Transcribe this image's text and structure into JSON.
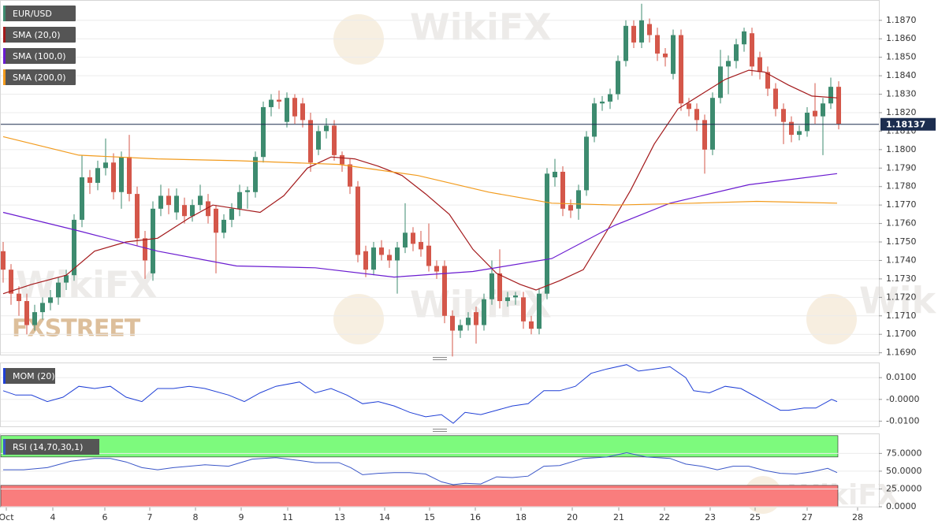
{
  "chart_data": {
    "type": "candlestick",
    "symbol": "EUR/USD",
    "logo": "FXSTREET",
    "watermark": "WikiFX",
    "grid": true,
    "up_color": "#3d8b6f",
    "down_color": "#d4574a",
    "xlim": [
      -0.4,
      111.1
    ],
    "xticks": [
      {
        "value": 0.4,
        "label": "Oct"
      },
      {
        "value": 6.3,
        "label": "4"
      },
      {
        "value": 12.9,
        "label": "6"
      },
      {
        "value": 18.6,
        "label": "7"
      },
      {
        "value": 24.4,
        "label": "8"
      },
      {
        "value": 30.2,
        "label": "9"
      },
      {
        "value": 36.1,
        "label": "11"
      },
      {
        "value": 42.7,
        "label": "13"
      },
      {
        "value": 48.4,
        "label": "14"
      },
      {
        "value": 54.1,
        "label": "15"
      },
      {
        "value": 59.9,
        "label": "16"
      },
      {
        "value": 65.7,
        "label": "18"
      },
      {
        "value": 72.2,
        "label": "20"
      },
      {
        "value": 78.1,
        "label": "21"
      },
      {
        "value": 83.9,
        "label": "22"
      },
      {
        "value": 89.7,
        "label": "23"
      },
      {
        "value": 95.4,
        "label": "25"
      },
      {
        "value": 102,
        "label": "27"
      },
      {
        "value": 108.4,
        "label": "28"
      }
    ],
    "ylim": [
      1.1689,
      1.1881
    ],
    "yticks": [
      {
        "value": 1.169,
        "label": "1.1690"
      },
      {
        "value": 1.17,
        "label": "1.1700"
      },
      {
        "value": 1.171,
        "label": "1.1710"
      },
      {
        "value": 1.172,
        "label": "1.1720"
      },
      {
        "value": 1.173,
        "label": "1.1730"
      },
      {
        "value": 1.174,
        "label": "1.1740"
      },
      {
        "value": 1.175,
        "label": "1.1750"
      },
      {
        "value": 1.176,
        "label": "1.1760"
      },
      {
        "value": 1.177,
        "label": "1.1770"
      },
      {
        "value": 1.178,
        "label": "1.1780"
      },
      {
        "value": 1.179,
        "label": "1.1790"
      },
      {
        "value": 1.18,
        "label": "1.1800"
      },
      {
        "value": 1.181,
        "label": "1.1810"
      },
      {
        "value": 1.182,
        "label": "1.1820"
      },
      {
        "value": 1.183,
        "label": "1.1830"
      },
      {
        "value": 1.184,
        "label": "1.1840"
      },
      {
        "value": 1.185,
        "label": "1.1850"
      },
      {
        "value": 1.186,
        "label": "1.1860"
      },
      {
        "value": 1.187,
        "label": "1.1870"
      }
    ],
    "open": [
      1.1745,
      1.1735,
      1.1722,
      1.1718,
      1.1705,
      1.1712,
      1.1717,
      1.172,
      1.1728,
      1.1732,
      1.1762,
      1.1785,
      1.1782,
      1.179,
      1.1793,
      1.1777,
      1.1796,
      1.1776,
      1.1752,
      1.1733,
      1.1768,
      1.1775,
      1.1766,
      1.177,
      1.1764,
      1.177,
      1.1772,
      1.1768,
      1.1755,
      1.1762,
      1.1768,
      1.1777,
      1.1777,
      1.1796,
      1.1823,
      1.1827,
      1.1815,
      1.1828,
      1.1825,
      1.1816,
      1.18,
      1.181,
      1.1813,
      1.1797,
      1.1792,
      1.178,
      1.1745,
      1.1735,
      1.1747,
      1.1743,
      1.174,
      1.1747,
      1.1755,
      1.175,
      1.1748,
      1.1737,
      1.1737,
      1.171,
      1.1702,
      1.1705,
      1.1712,
      1.1705,
      1.1719,
      1.1733,
      1.1718,
      1.172,
      1.172,
      1.1707,
      1.1703,
      1.1722,
      1.1785,
      1.1788,
      1.177,
      1.1768,
      1.1778,
      1.1807,
      1.1825,
      1.1826,
      1.183,
      1.1848,
      1.1867,
      1.1858,
      1.1868,
      1.1862,
      1.1852,
      1.1841,
      1.1862,
      1.1825,
      1.1822,
      1.1816,
      1.18,
      1.1828,
      1.1845,
      1.1848,
      1.1857,
      1.1863,
      1.185,
      1.1842,
      1.1833,
      1.1822,
      1.1815,
      1.1808,
      1.181,
      1.1821,
      1.1818,
      1.1825,
      1.1834
    ],
    "high": [
      1.175,
      1.1738,
      1.1726,
      1.1722,
      1.1716,
      1.172,
      1.1724,
      1.1731,
      1.1735,
      1.1765,
      1.1797,
      1.1789,
      1.1794,
      1.1806,
      1.1798,
      1.1799,
      1.1808,
      1.178,
      1.1756,
      1.1772,
      1.1781,
      1.1779,
      1.1779,
      1.1774,
      1.1773,
      1.1781,
      1.1776,
      1.177,
      1.1765,
      1.1771,
      1.1781,
      1.178,
      1.1799,
      1.1826,
      1.183,
      1.1832,
      1.1831,
      1.183,
      1.1828,
      1.182,
      1.1813,
      1.1817,
      1.1816,
      1.1799,
      1.1795,
      1.1783,
      1.1748,
      1.175,
      1.1751,
      1.1746,
      1.175,
      1.1771,
      1.1758,
      1.1756,
      1.176,
      1.174,
      1.174,
      1.1713,
      1.1708,
      1.1712,
      1.1715,
      1.1722,
      1.174,
      1.1746,
      1.1723,
      1.1723,
      1.1723,
      1.171,
      1.1725,
      1.179,
      1.1795,
      1.1791,
      1.1773,
      1.1781,
      1.181,
      1.1828,
      1.1829,
      1.1833,
      1.1851,
      1.187,
      1.187,
      1.1879,
      1.1871,
      1.1866,
      1.1855,
      1.1865,
      1.1865,
      1.1828,
      1.1825,
      1.1819,
      1.1831,
      1.1854,
      1.1851,
      1.186,
      1.1866,
      1.1866,
      1.1853,
      1.1845,
      1.1836,
      1.1825,
      1.1818,
      1.1813,
      1.1823,
      1.1836,
      1.1828,
      1.1839,
      1.1837
    ],
    "low": [
      1.1728,
      1.1716,
      1.171,
      1.17,
      1.1702,
      1.1708,
      1.1713,
      1.1716,
      1.1724,
      1.1729,
      1.1758,
      1.1776,
      1.1778,
      1.1786,
      1.1773,
      1.1768,
      1.1772,
      1.1748,
      1.173,
      1.1729,
      1.1764,
      1.1765,
      1.1762,
      1.176,
      1.1761,
      1.1767,
      1.176,
      1.1733,
      1.1752,
      1.1758,
      1.1764,
      1.1768,
      1.1774,
      1.1793,
      1.1818,
      1.1822,
      1.1812,
      1.1814,
      1.1812,
      1.1788,
      1.1797,
      1.1806,
      1.1794,
      1.1788,
      1.1776,
      1.1739,
      1.1731,
      1.1732,
      1.174,
      1.1736,
      1.1722,
      1.1744,
      1.1745,
      1.1742,
      1.1734,
      1.173,
      1.1706,
      1.1688,
      1.1698,
      1.1702,
      1.1695,
      1.1702,
      1.1716,
      1.1714,
      1.1715,
      1.1716,
      1.1703,
      1.17,
      1.17,
      1.1719,
      1.178,
      1.1764,
      1.1763,
      1.1762,
      1.1775,
      1.1804,
      1.1821,
      1.1822,
      1.1827,
      1.1845,
      1.1855,
      1.1855,
      1.1858,
      1.1848,
      1.1845,
      1.1838,
      1.1821,
      1.1818,
      1.181,
      1.1787,
      1.1797,
      1.1825,
      1.183,
      1.1844,
      1.1853,
      1.184,
      1.1838,
      1.1829,
      1.1818,
      1.1803,
      1.1804,
      1.1805,
      1.1807,
      1.1814,
      1.1797,
      1.1822,
      1.1811
    ],
    "close": [
      1.1735,
      1.1722,
      1.1718,
      1.1705,
      1.1712,
      1.1717,
      1.172,
      1.1728,
      1.1732,
      1.1762,
      1.1785,
      1.1782,
      1.179,
      1.1793,
      1.1777,
      1.1796,
      1.1776,
      1.1752,
      1.174,
      1.1768,
      1.1775,
      1.177,
      1.1775,
      1.1764,
      1.177,
      1.1775,
      1.1764,
      1.1755,
      1.1762,
      1.1768,
      1.1777,
      1.1778,
      1.1796,
      1.1823,
      1.1827,
      1.1826,
      1.1828,
      1.1818,
      1.1816,
      1.1793,
      1.181,
      1.1813,
      1.1797,
      1.1792,
      1.178,
      1.1743,
      1.1735,
      1.1747,
      1.1743,
      1.174,
      1.1747,
      1.1755,
      1.1749,
      1.1746,
      1.1737,
      1.1734,
      1.171,
      1.1702,
      1.1705,
      1.1709,
      1.1705,
      1.1719,
      1.1733,
      1.1718,
      1.172,
      1.1721,
      1.1707,
      1.1703,
      1.1722,
      1.1787,
      1.1788,
      1.1768,
      1.1767,
      1.1778,
      1.1807,
      1.1825,
      1.1826,
      1.183,
      1.1848,
      1.1867,
      1.1858,
      1.187,
      1.1862,
      1.1852,
      1.185,
      1.1862,
      1.1825,
      1.1822,
      1.1816,
      1.18,
      1.1828,
      1.1845,
      1.1848,
      1.1857,
      1.1864,
      1.1845,
      1.1842,
      1.1833,
      1.1822,
      1.1815,
      1.1808,
      1.181,
      1.182,
      1.1818,
      1.1825,
      1.1834,
      1.1814
    ],
    "current_price": 1.18137,
    "current_price_color": "#1c2d4f",
    "overlays": [
      {
        "name": "SMA (20,0)",
        "color": "#a3191b",
        "x": [
          0,
          3.6,
          8,
          11.6,
          15.6,
          19.6,
          23.6,
          26.6,
          29.6,
          32.6,
          35.6,
          38.6,
          41.6,
          44.6,
          47.6,
          50.6,
          53.6,
          56.6,
          59.6,
          62.6,
          65.6,
          67.6,
          70.6,
          73.6,
          76.6,
          79.6,
          82.6,
          85.6,
          88.6,
          91.6,
          94.6,
          96.6,
          99.6,
          102.6,
          105.8
        ],
        "values": [
          1.1722,
          1.1727,
          1.1732,
          1.1745,
          1.175,
          1.1752,
          1.1763,
          1.177,
          1.1768,
          1.1766,
          1.1775,
          1.179,
          1.1796,
          1.1795,
          1.1791,
          1.1786,
          1.1776,
          1.1765,
          1.1746,
          1.1733,
          1.1727,
          1.1724,
          1.1729,
          1.1735,
          1.1756,
          1.1778,
          1.1803,
          1.1822,
          1.183,
          1.1838,
          1.1843,
          1.1842,
          1.1835,
          1.1829,
          1.1828
        ]
      },
      {
        "name": "SMA (100,0)",
        "color": "#6a1bd0",
        "x": [
          0,
          9.6,
          19.6,
          29.6,
          39.6,
          49.6,
          59.6,
          69.6,
          77.6,
          84.6,
          94.6,
          105.8
        ],
        "values": [
          1.1766,
          1.1756,
          1.1745,
          1.1737,
          1.1736,
          1.1731,
          1.1734,
          1.1741,
          1.1759,
          1.1771,
          1.1781,
          1.1787
        ]
      },
      {
        "name": "SMA (200,0)",
        "color": "#f29b1d",
        "x": [
          0,
          9.6,
          19.6,
          29.6,
          42.6,
          52.6,
          61.6,
          69.6,
          77.6,
          87.6,
          95.6,
          105.8
        ],
        "values": [
          1.1807,
          1.1797,
          1.1795,
          1.1794,
          1.1792,
          1.1786,
          1.1777,
          1.1771,
          1.177,
          1.1771,
          1.1772,
          1.1771
        ]
      }
    ],
    "indicators": [
      {
        "type": "line",
        "name": "MOM (20)",
        "color": "#1f3fd6",
        "ylim": [
          -0.0124,
          0.0166
        ],
        "yticks": [
          {
            "value": 0.01,
            "label": "0.0100"
          },
          {
            "value": 0,
            "label": "-0.0000"
          },
          {
            "value": -0.01,
            "label": "-0.0100"
          }
        ],
        "x": [
          0,
          1.6,
          3.6,
          5.6,
          7.6,
          9.6,
          11.6,
          13.6,
          15.6,
          17.6,
          19.6,
          21.6,
          23.6,
          25.6,
          28.6,
          30.6,
          32.6,
          34.6,
          37.6,
          39.6,
          41.6,
          43.6,
          45.6,
          47.6,
          49.6,
          51.6,
          53.6,
          55.6,
          57.1,
          58.6,
          60.6,
          62.6,
          64.6,
          66.6,
          68.6,
          70.6,
          72.6,
          74.6,
          76.6,
          79.1,
          80.6,
          82.6,
          84.6,
          86.6,
          87.6,
          89.6,
          91.6,
          93.6,
          95.6,
          97.6,
          98.6,
          99.6,
          101.6,
          103.1,
          105.1,
          105.8
        ],
        "values": [
          0.004,
          0.002,
          0.002,
          -0.001,
          0.001,
          0.006,
          0.005,
          0.006,
          0.001,
          -0.001,
          0.005,
          0.005,
          0.006,
          0.005,
          0.002,
          -0.001,
          0.003,
          0.006,
          0.008,
          0.003,
          0.005,
          0.002,
          -0.002,
          -0.001,
          -0.003,
          -0.006,
          -0.008,
          -0.007,
          -0.011,
          -0.006,
          -0.007,
          -0.005,
          -0.003,
          -0.002,
          0.004,
          0.004,
          0.006,
          0.012,
          0.014,
          0.016,
          0.013,
          0.014,
          0.015,
          0.01,
          0.004,
          0.003,
          0.006,
          0.005,
          0.001,
          -0.003,
          -0.005,
          -0.005,
          -0.004,
          -0.004,
          0,
          -0.001
        ]
      },
      {
        "type": "line",
        "name": "RSI (14,70,30,1)",
        "color": "#3a56c8",
        "ylim": [
          0,
          102
        ],
        "yticks": [
          {
            "value": 75,
            "label": "75.0000"
          },
          {
            "value": 50,
            "label": "50.0000"
          },
          {
            "value": 25,
            "label": "25.0000"
          },
          {
            "value": 0,
            "label": "0.0000"
          }
        ],
        "bands": [
          {
            "from": 70,
            "to": 100,
            "color": "#7dfa7d"
          },
          {
            "from": 0,
            "to": 30,
            "color": "#f97d7d"
          }
        ],
        "x": [
          0,
          2.6,
          5.6,
          8.6,
          11.6,
          13.6,
          15.6,
          17.6,
          19.6,
          21.6,
          23.6,
          25.6,
          28.6,
          31.6,
          34.6,
          37.6,
          39.6,
          42.6,
          44.1,
          45.6,
          47.6,
          49.6,
          51.6,
          53.6,
          55.6,
          57.1,
          58.6,
          60.6,
          62.6,
          64.6,
          66.6,
          68.6,
          70.6,
          73.6,
          76.6,
          79.1,
          81.6,
          84.6,
          86.6,
          88.6,
          90.6,
          92.6,
          94.6,
          96.6,
          98.6,
          100.6,
          102.6,
          104.6,
          105.8
        ],
        "values": [
          52,
          52,
          55,
          64,
          68,
          68,
          63,
          55,
          52,
          55,
          57,
          59,
          57,
          67,
          69,
          65,
          62,
          62,
          55,
          45,
          47,
          48,
          48,
          46,
          35,
          31,
          33,
          32,
          42,
          41,
          43,
          57,
          58,
          68,
          70,
          76,
          70,
          68,
          60,
          57,
          52,
          57,
          57,
          51,
          47,
          46,
          49,
          54,
          48
        ]
      }
    ]
  }
}
